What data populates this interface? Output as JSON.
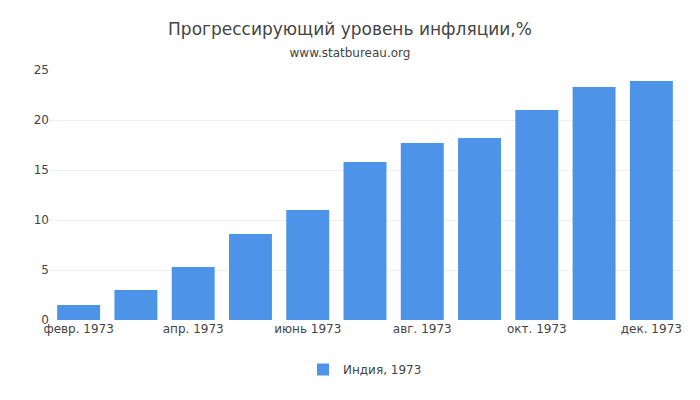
{
  "chart_data": {
    "type": "bar",
    "title": "Прогрессирующий уровень инфляции,%",
    "subtitle": "www.statbureau.org",
    "categories": [
      "февр. 1973",
      null,
      "апр. 1973",
      null,
      "июнь 1973",
      null,
      "авг. 1973",
      null,
      "окт. 1973",
      null,
      "дек. 1973"
    ],
    "series": [
      {
        "name": "Индия, 1973",
        "color": "#4d94e8",
        "values": [
          1.5,
          3.0,
          5.3,
          8.6,
          11.0,
          15.8,
          17.7,
          18.2,
          21.0,
          23.3,
          23.9
        ]
      }
    ],
    "ylim": [
      0,
      25
    ],
    "yticks": [
      0,
      5,
      10,
      15,
      20,
      25
    ],
    "grid": true,
    "legend": "bottom"
  }
}
